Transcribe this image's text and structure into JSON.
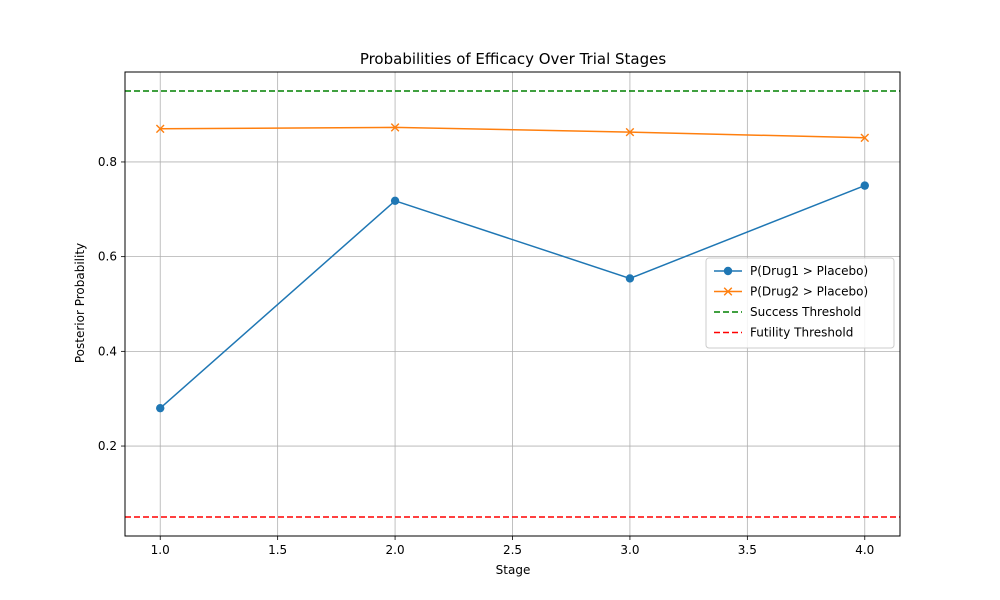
{
  "chart_data": {
    "type": "line",
    "title": "Probabilities of Efficacy Over Trial Stages",
    "xlabel": "Stage",
    "ylabel": "Posterior Probability",
    "xlim": [
      0.85,
      4.15
    ],
    "ylim": [
      0.01,
      0.99
    ],
    "xticks": [
      1.0,
      1.5,
      2.0,
      2.5,
      3.0,
      3.5,
      4.0
    ],
    "xtick_labels": [
      "1.0",
      "1.5",
      "2.0",
      "2.5",
      "3.0",
      "3.5",
      "4.0"
    ],
    "yticks": [
      0.2,
      0.4,
      0.6,
      0.8
    ],
    "ytick_labels": [
      "0.2",
      "0.4",
      "0.6",
      "0.8"
    ],
    "grid": true,
    "legend_position": "center-right",
    "x": [
      1,
      2,
      3,
      4
    ],
    "series": [
      {
        "name": "P(Drug1 > Placebo)",
        "values": [
          0.28,
          0.718,
          0.554,
          0.75
        ],
        "color": "#1f77b4",
        "marker": "circle",
        "linestyle": "solid"
      },
      {
        "name": "P(Drug2 > Placebo)",
        "values": [
          0.87,
          0.873,
          0.863,
          0.851
        ],
        "color": "#ff7f0e",
        "marker": "x",
        "linestyle": "solid"
      }
    ],
    "thresholds": [
      {
        "name": "Success Threshold",
        "value": 0.95,
        "color": "#008000",
        "linestyle": "dashed"
      },
      {
        "name": "Futility Threshold",
        "value": 0.05,
        "color": "#ff0000",
        "linestyle": "dashed"
      }
    ]
  }
}
